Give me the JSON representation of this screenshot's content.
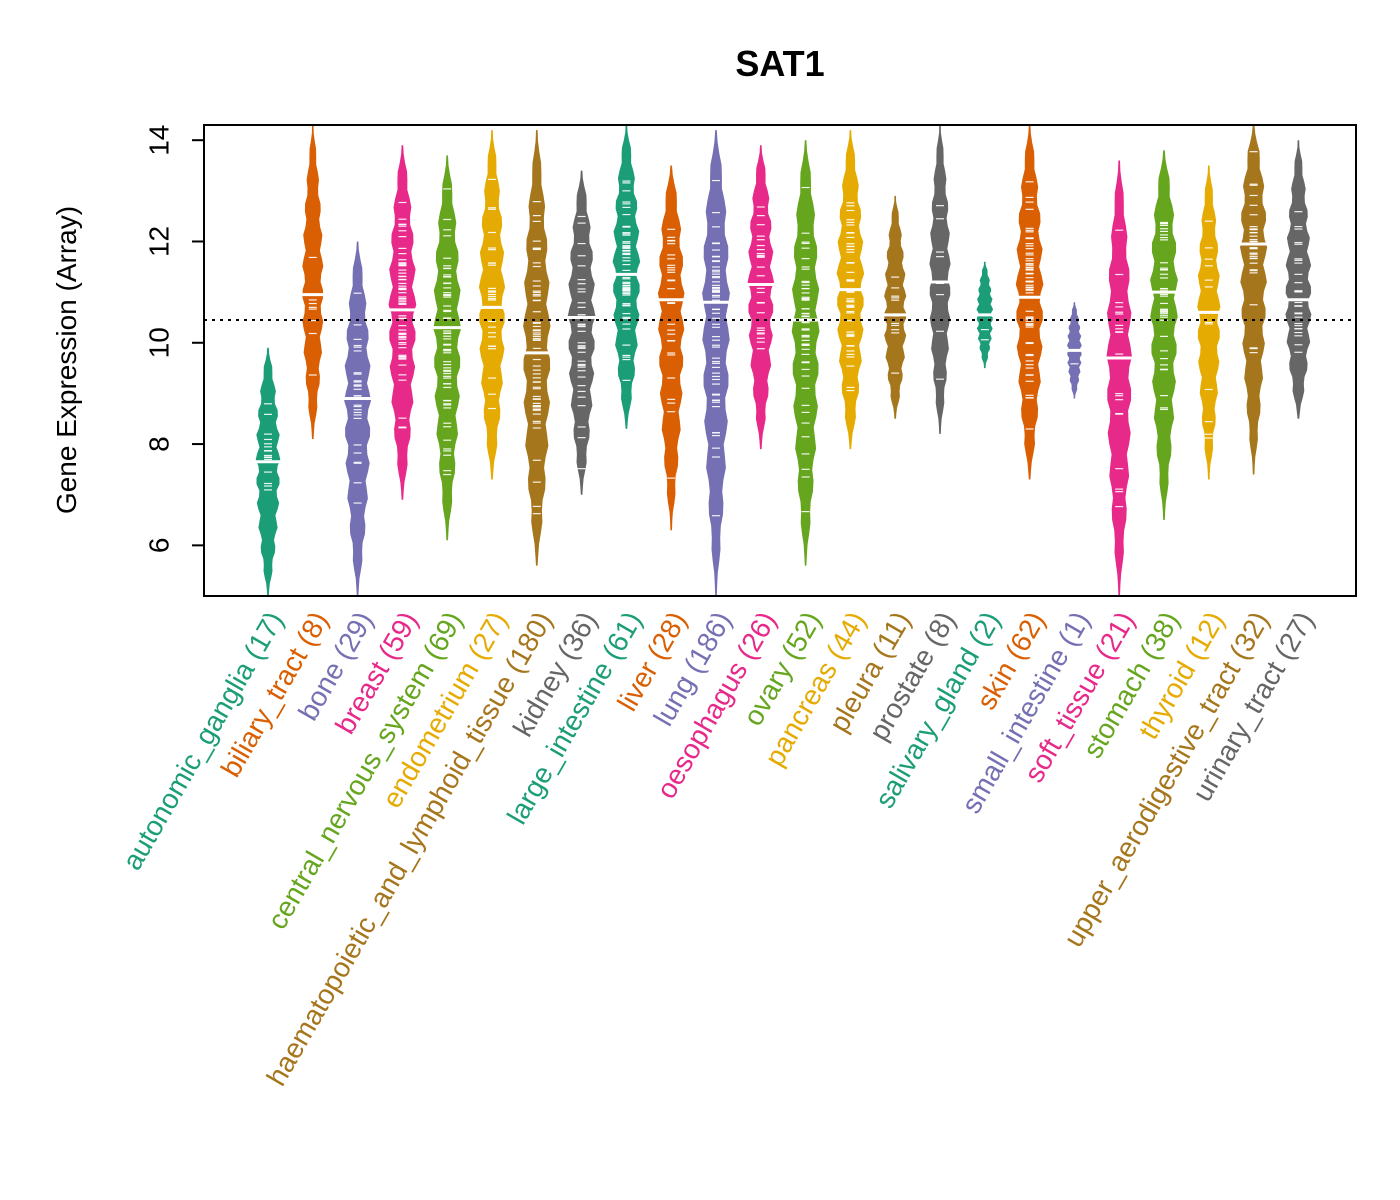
{
  "chart_data": {
    "type": "violin",
    "title": "SAT1",
    "xlabel": "",
    "ylabel": "Gene Expression (Array)",
    "ylim": [
      5,
      14.3
    ],
    "yticks": [
      6,
      8,
      10,
      12,
      14
    ],
    "reference_line": 10.45,
    "categories": [
      {
        "name": "autonomic_ganglia",
        "label": "autonomic_ganglia (17)",
        "n": 17,
        "color": "#1b9e77",
        "min": 5.0,
        "max": 9.9,
        "median": 7.65
      },
      {
        "name": "biliary_tract",
        "label": "biliary_tract (8)",
        "n": 8,
        "color": "#d95f02",
        "min": 8.1,
        "max": 14.3,
        "median": 10.95
      },
      {
        "name": "bone",
        "label": "bone (29)",
        "n": 29,
        "color": "#7570b3",
        "min": 5.0,
        "max": 12.0,
        "median": 8.9
      },
      {
        "name": "breast",
        "label": "breast (59)",
        "n": 59,
        "color": "#e7298a",
        "min": 6.9,
        "max": 13.9,
        "median": 10.65
      },
      {
        "name": "central_nervous_system",
        "label": "central_nervous_system (69)",
        "n": 69,
        "color": "#66a61e",
        "min": 6.1,
        "max": 13.7,
        "median": 10.3
      },
      {
        "name": "endometrium",
        "label": "endometrium (27)",
        "n": 27,
        "color": "#e6ab02",
        "min": 7.3,
        "max": 14.2,
        "median": 10.7
      },
      {
        "name": "haematopoietic_and_lymphoid_tissue",
        "label": "haematopoietic_and_lymphoid_tissue (180)",
        "n": 180,
        "color": "#a6761d",
        "min": 5.6,
        "max": 14.2,
        "median": 9.8
      },
      {
        "name": "kidney",
        "label": "kidney (36)",
        "n": 36,
        "color": "#666666",
        "min": 7.0,
        "max": 13.4,
        "median": 10.5
      },
      {
        "name": "large_intestine",
        "label": "large_intestine (61)",
        "n": 61,
        "color": "#1b9e77",
        "min": 8.3,
        "max": 14.3,
        "median": 11.35
      },
      {
        "name": "liver",
        "label": "liver (28)",
        "n": 28,
        "color": "#d95f02",
        "min": 6.3,
        "max": 13.5,
        "median": 10.85
      },
      {
        "name": "lung",
        "label": "lung (186)",
        "n": 186,
        "color": "#7570b3",
        "min": 5.0,
        "max": 14.2,
        "median": 10.8
      },
      {
        "name": "oesophagus",
        "label": "oesophagus (26)",
        "n": 26,
        "color": "#e7298a",
        "min": 7.9,
        "max": 13.9,
        "median": 11.15
      },
      {
        "name": "ovary",
        "label": "ovary (52)",
        "n": 52,
        "color": "#66a61e",
        "min": 5.6,
        "max": 14.0,
        "median": 10.45
      },
      {
        "name": "pancreas",
        "label": "pancreas (44)",
        "n": 44,
        "color": "#e6ab02",
        "min": 7.9,
        "max": 14.2,
        "median": 11.05
      },
      {
        "name": "pleura",
        "label": "pleura (11)",
        "n": 11,
        "color": "#a6761d",
        "min": 8.5,
        "max": 12.9,
        "median": 10.55
      },
      {
        "name": "prostate",
        "label": "prostate (8)",
        "n": 8,
        "color": "#666666",
        "min": 8.2,
        "max": 14.3,
        "median": 11.2
      },
      {
        "name": "salivary_gland",
        "label": "salivary_gland (2)",
        "n": 2,
        "color": "#1b9e77",
        "min": 9.5,
        "max": 11.6,
        "median": 10.55
      },
      {
        "name": "skin",
        "label": "skin (62)",
        "n": 62,
        "color": "#d95f02",
        "min": 7.3,
        "max": 14.3,
        "median": 10.9
      },
      {
        "name": "small_intestine",
        "label": "small_intestine (1)",
        "n": 1,
        "color": "#7570b3",
        "min": 8.9,
        "max": 10.8,
        "median": 9.85
      },
      {
        "name": "soft_tissue",
        "label": "soft_tissue (21)",
        "n": 21,
        "color": "#e7298a",
        "min": 5.0,
        "max": 13.6,
        "median": 9.7
      },
      {
        "name": "stomach",
        "label": "stomach (38)",
        "n": 38,
        "color": "#66a61e",
        "min": 6.5,
        "max": 13.8,
        "median": 11.0
      },
      {
        "name": "thyroid",
        "label": "thyroid (12)",
        "n": 12,
        "color": "#e6ab02",
        "min": 7.3,
        "max": 13.5,
        "median": 10.6
      },
      {
        "name": "upper_aerodigestive_tract",
        "label": "upper_aerodigestive_tract (32)",
        "n": 32,
        "color": "#a6761d",
        "min": 7.4,
        "max": 14.3,
        "median": 11.95
      },
      {
        "name": "urinary_tract",
        "label": "urinary_tract (27)",
        "n": 27,
        "color": "#666666",
        "min": 8.5,
        "max": 14.0,
        "median": 10.85
      }
    ]
  }
}
